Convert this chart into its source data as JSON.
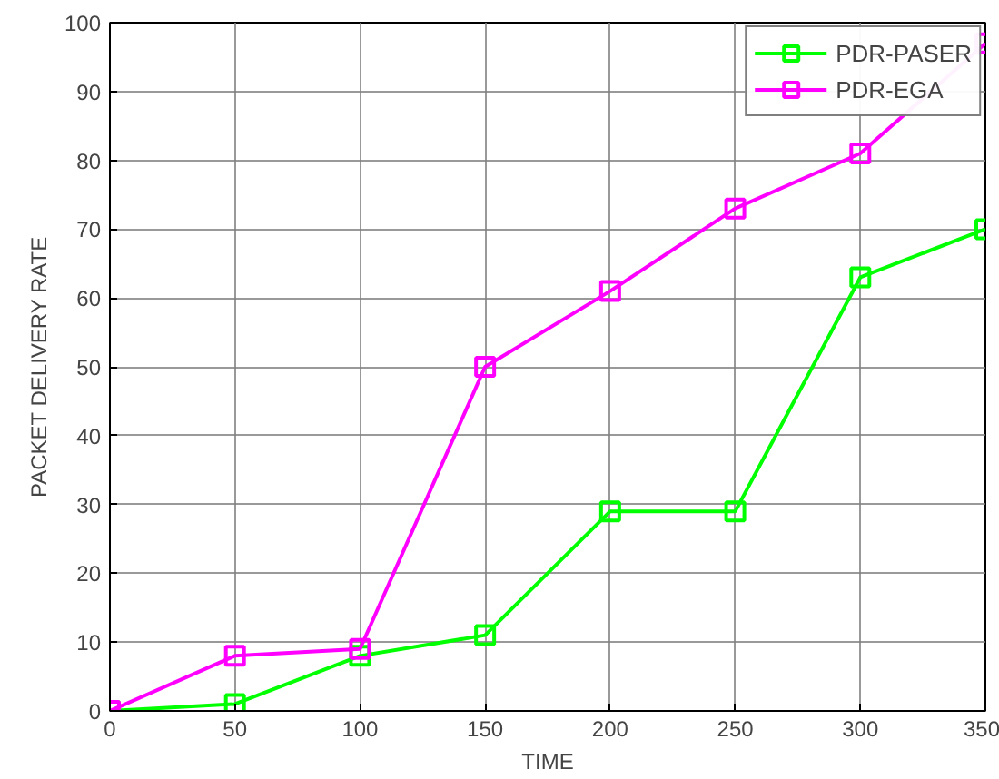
{
  "chart_data": {
    "type": "line",
    "xlabel": "TIME",
    "ylabel": "PACKET DELIVERY RATE",
    "x": [
      0,
      50,
      100,
      150,
      200,
      250,
      300,
      350
    ],
    "series": [
      {
        "name": "PDR-PASER",
        "color": "#00ff00",
        "values": [
          0,
          1,
          8,
          11,
          29,
          29,
          63,
          70
        ]
      },
      {
        "name": "PDR-EGA",
        "color": "#ff00ff",
        "values": [
          0,
          8,
          9,
          50,
          61,
          73,
          81,
          97
        ]
      }
    ],
    "xlim": [
      0,
      350
    ],
    "ylim": [
      0,
      100
    ],
    "xticks": [
      0,
      50,
      100,
      150,
      200,
      250,
      300,
      350
    ],
    "yticks": [
      0,
      10,
      20,
      30,
      40,
      50,
      60,
      70,
      80,
      90,
      100
    ],
    "grid": true,
    "legend": "top right",
    "marker": "square",
    "line_style": "solid"
  }
}
